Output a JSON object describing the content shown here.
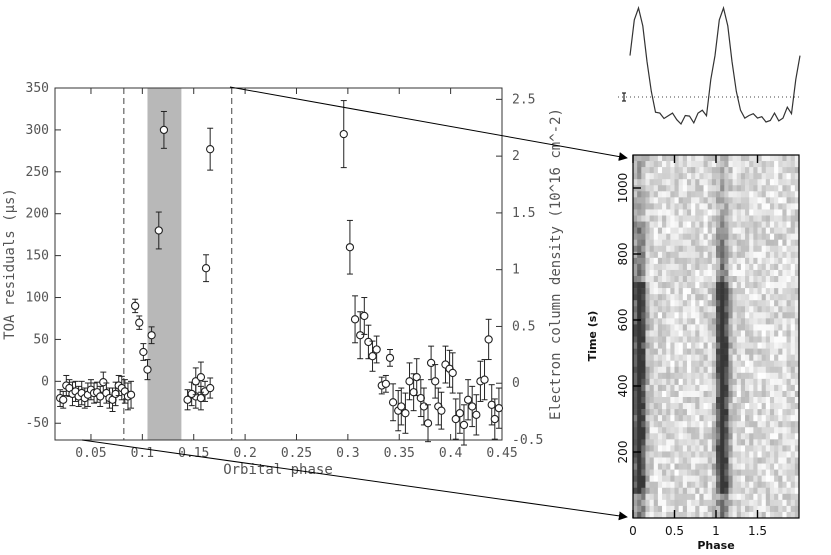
{
  "chart_data": [
    {
      "type": "scatter",
      "xlabel": "Orbital phase",
      "ylabel": "TOA residuals (µs)",
      "y2label": "Electron column density (10^16 cm^-2)",
      "xlim": [
        0.015,
        0.45
      ],
      "ylim": [
        -70,
        350
      ],
      "y2lim": [
        -0.5,
        2.6
      ],
      "x_ticks": [
        "0.05",
        "0.1",
        "0.15",
        "0.2",
        "0.25",
        "0.3",
        "0.35",
        "0.4",
        "0.45"
      ],
      "y_ticks": [
        "-50",
        "0",
        "50",
        "100",
        "150",
        "200",
        "250",
        "300",
        "350"
      ],
      "y2_ticks": [
        "-0.5",
        "0",
        "0.5",
        "1",
        "1.5",
        "2",
        "2.5"
      ],
      "shaded_region": [
        0.105,
        0.138
      ],
      "dashed_lines": [
        0.082,
        0.187
      ],
      "grid": false,
      "series": [
        {
          "x": [
            0.02,
            0.023,
            0.026,
            0.029,
            0.032,
            0.035,
            0.038,
            0.041,
            0.044,
            0.047,
            0.05,
            0.053,
            0.056,
            0.059,
            0.062,
            0.065,
            0.068,
            0.071,
            0.074,
            0.077,
            0.08,
            0.083,
            0.086,
            0.089,
            0.093,
            0.097,
            0.101,
            0.105,
            0.109,
            0.116,
            0.121,
            0.152,
            0.157,
            0.161,
            0.166,
            0.144,
            0.148,
            0.152,
            0.157,
            0.162,
            0.166,
            0.296,
            0.302,
            0.307,
            0.312,
            0.316,
            0.32,
            0.324,
            0.328,
            0.333,
            0.337,
            0.341,
            0.344,
            0.349,
            0.352,
            0.356,
            0.36,
            0.364,
            0.367,
            0.371,
            0.374,
            0.378,
            0.381,
            0.385,
            0.388,
            0.391,
            0.395,
            0.399,
            0.402,
            0.405,
            0.409,
            0.413,
            0.417,
            0.421,
            0.425,
            0.429,
            0.433,
            0.437,
            0.44,
            0.443,
            0.447
          ],
          "y": [
            -20,
            -22,
            -5,
            -8,
            -15,
            -12,
            -18,
            -14,
            -20,
            -16,
            -10,
            -14,
            -13,
            -18,
            -1,
            -14,
            -20,
            -22,
            -15,
            -5,
            -8,
            -12,
            -18,
            -16,
            90,
            70,
            35,
            14,
            55,
            180,
            300,
            -18,
            -20,
            -12,
            -8,
            -22,
            -15,
            0,
            5,
            135,
            277,
            295,
            160,
            74,
            55,
            78,
            47,
            30,
            38,
            -5,
            -3,
            28,
            -25,
            -35,
            -30,
            -38,
            0,
            -13,
            5,
            -20,
            -30,
            -50,
            22,
            0,
            -30,
            -35,
            20,
            15,
            10,
            -45,
            -38,
            -52,
            -22,
            -30,
            -40,
            0,
            2,
            50,
            -28,
            -45,
            -32
          ],
          "err": [
            10,
            10,
            12,
            10,
            14,
            12,
            12,
            14,
            12,
            14,
            12,
            12,
            12,
            12,
            12,
            12,
            12,
            14,
            14,
            12,
            14,
            14,
            16,
            16,
            8,
            8,
            10,
            12,
            10,
            22,
            22,
            14,
            14,
            12,
            12,
            12,
            14,
            16,
            18,
            16,
            25,
            40,
            32,
            28,
            28,
            22,
            20,
            18,
            16,
            10,
            10,
            10,
            22,
            24,
            22,
            24,
            22,
            22,
            22,
            22,
            22,
            22,
            20,
            20,
            22,
            22,
            22,
            22,
            24,
            24,
            24,
            24,
            24,
            24,
            24,
            24,
            24,
            24,
            24,
            24,
            24
          ]
        }
      ]
    },
    {
      "type": "line",
      "title": "",
      "series": [
        {
          "phase": [
            0,
            0.05,
            0.1,
            0.15,
            0.2,
            0.25,
            0.3,
            0.35,
            0.4,
            0.45,
            0.5,
            0.55,
            0.6,
            0.65,
            0.7,
            0.75,
            0.8,
            0.85,
            0.9,
            0.95,
            1.0,
            1.05,
            1.1,
            1.15,
            1.2,
            1.25,
            1.3,
            1.35,
            1.4,
            1.45,
            1.5,
            1.55,
            1.6,
            1.65,
            1.7,
            1.75,
            1.8,
            1.85,
            1.9,
            1.95,
            2.0
          ],
          "profile": [
            0.6,
            0.9,
            1.0,
            0.85,
            0.55,
            0.3,
            0.15,
            0.1,
            0.08,
            0.12,
            0.1,
            0.07,
            0.05,
            0.08,
            0.1,
            0.06,
            0.1,
            0.15,
            0.12,
            0.4,
            0.6,
            0.9,
            1.0,
            0.85,
            0.55,
            0.3,
            0.15,
            0.1,
            0.08,
            0.12,
            0.1,
            0.07,
            0.05,
            0.08,
            0.1,
            0.06,
            0.1,
            0.15,
            0.12,
            0.4,
            0.6
          ]
        }
      ],
      "baseline": "dotted"
    },
    {
      "type": "heatmap",
      "xlabel": "Phase",
      "ylabel": "Time (s)",
      "xlim": [
        0,
        2
      ],
      "ylim": [
        0,
        1100
      ],
      "x_ticks": [
        "0",
        "0.5",
        "1",
        "1.5"
      ],
      "y_ticks": [
        "200",
        "400",
        "600",
        "800",
        "1000"
      ],
      "colormap": "greyscale (dark = high intensity)",
      "features": "vertical dark pulse bands near phase 0.1 and 1.1, strongest in 100-700 s"
    }
  ]
}
